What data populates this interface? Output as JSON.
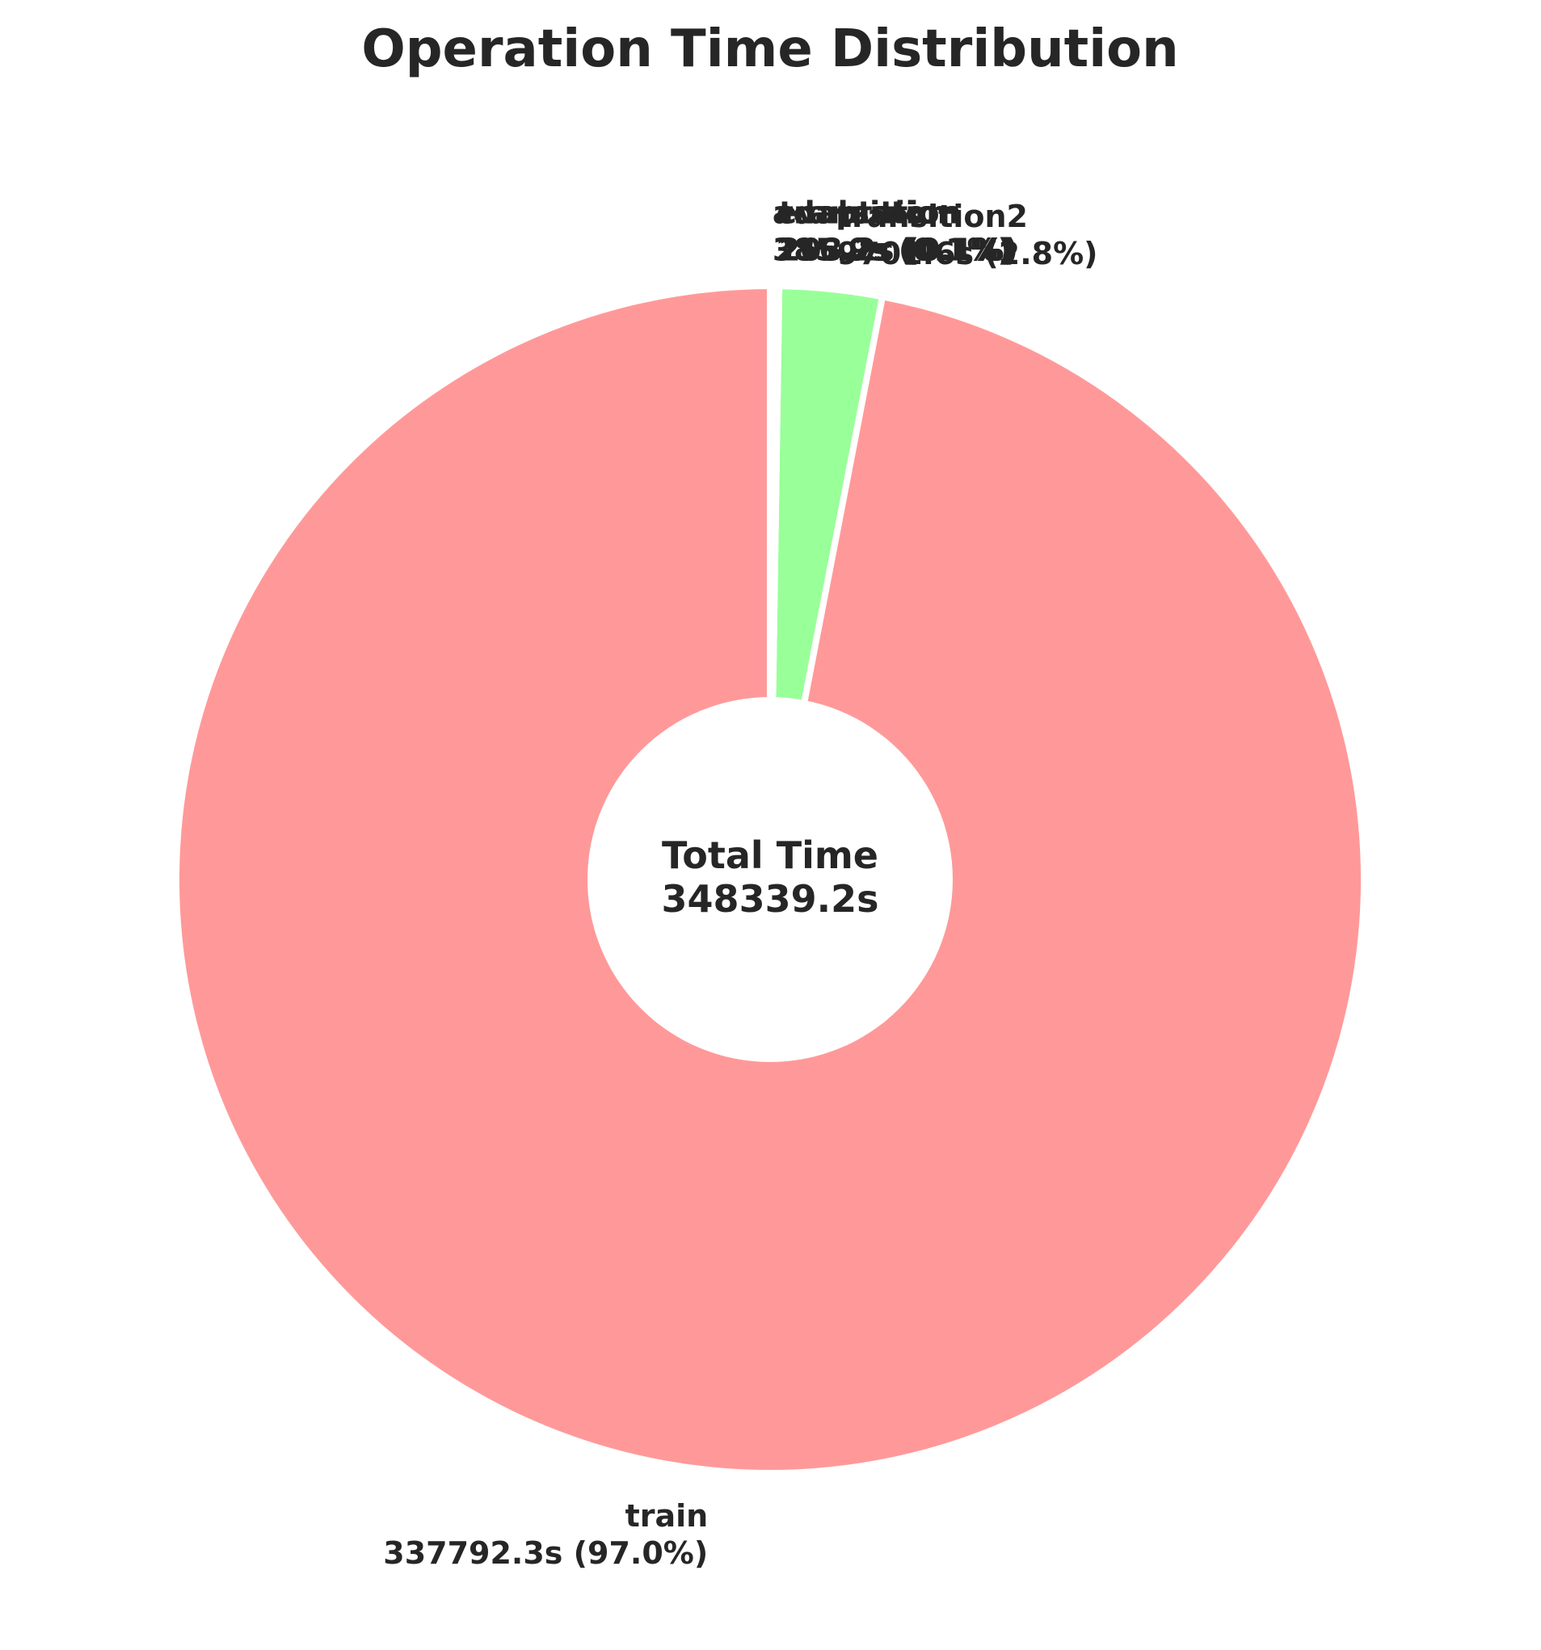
{
  "chart_data": {
    "type": "pie",
    "title": "Operation Time Distribution",
    "center_label": {
      "line1": "Total Time",
      "line2": "348339.2s"
    },
    "slices": [
      {
        "name": "train",
        "value_label": "337792.3s (97.0%)",
        "value": 337792.3,
        "percent": 97.0,
        "color": "#ff9999"
      },
      {
        "name": "transition2",
        "value_label": "9701.6s (2.8%)",
        "value": 9701.6,
        "percent": 2.8,
        "color": "#99ff99"
      },
      {
        "name": "transition",
        "value_label": "203.2s (0.1%)",
        "value": 203.2,
        "percent": 0.1,
        "color": "#66b3ff"
      },
      {
        "name": "evaluation",
        "value_label": "256.2s (0.1%)",
        "value": 256.2,
        "percent": 0.1,
        "color": "#ffcc99"
      },
      {
        "name": "adaptation",
        "value_label": "385.9s (0.1%)",
        "value": 385.9,
        "percent": 0.1,
        "color": "#c2c2f0"
      }
    ],
    "start_angle_deg": 90,
    "direction": "counterclockwise",
    "donut": true
  }
}
